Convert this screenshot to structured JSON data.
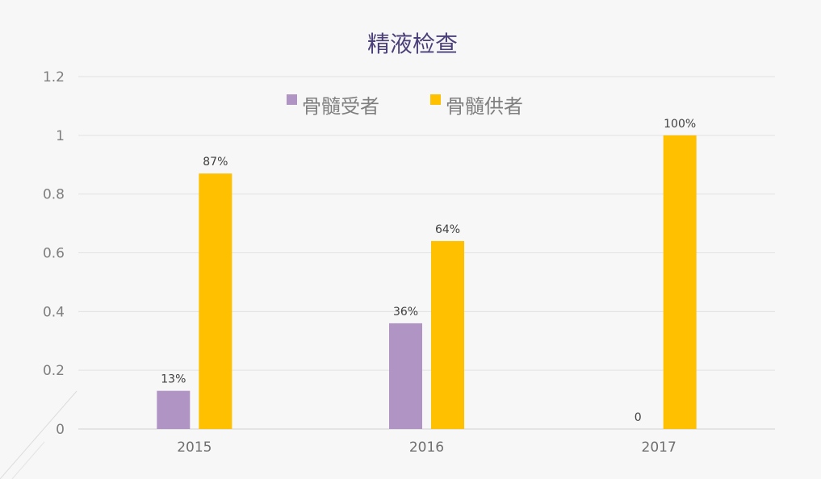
{
  "chart_data": {
    "type": "bar",
    "title": "精液检查",
    "categories": [
      "2015",
      "2016",
      "2017"
    ],
    "series": [
      {
        "name": "骨髓受者",
        "values": [
          0.13,
          0.36,
          0
        ],
        "labels": [
          "13%",
          "36%",
          "0"
        ],
        "color": "#b094c4"
      },
      {
        "name": "骨髓供者",
        "values": [
          0.87,
          0.64,
          1.0
        ],
        "labels": [
          "87%",
          "64%",
          "100%"
        ],
        "color": "#ffc000"
      }
    ],
    "yticks": [
      "0",
      "0.2",
      "0.4",
      "0.6",
      "0.8",
      "1",
      "1.2"
    ],
    "ylim": [
      0,
      1.2
    ],
    "grid": true,
    "legend_position": "top"
  }
}
